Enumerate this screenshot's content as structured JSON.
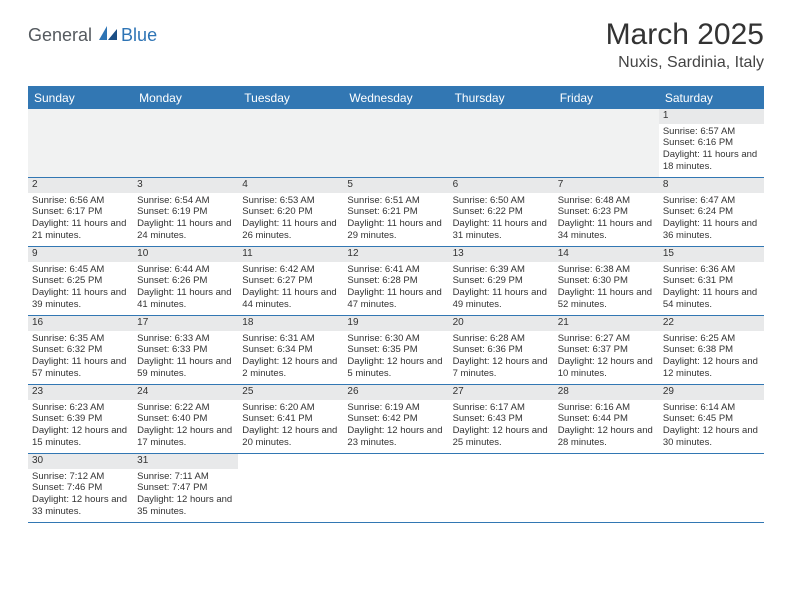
{
  "logo": {
    "text1": "General",
    "text2": "Blue"
  },
  "title": "March 2025",
  "location": "Nuxis, Sardinia, Italy",
  "day_header_bg": "#3277b3",
  "day_header_fg": "#ffffff",
  "grid_border": "#3277b3",
  "blank_bg": "#f1f2f2",
  "daynum_bg": "#e8e9ea",
  "days_of_week": [
    "Sunday",
    "Monday",
    "Tuesday",
    "Wednesday",
    "Thursday",
    "Friday",
    "Saturday"
  ],
  "weeks": [
    [
      {
        "blank": true
      },
      {
        "blank": true
      },
      {
        "blank": true
      },
      {
        "blank": true
      },
      {
        "blank": true
      },
      {
        "blank": true
      },
      {
        "day": "1",
        "sunrise": "Sunrise: 6:57 AM",
        "sunset": "Sunset: 6:16 PM",
        "daylight": "Daylight: 11 hours and 18 minutes."
      }
    ],
    [
      {
        "day": "2",
        "sunrise": "Sunrise: 6:56 AM",
        "sunset": "Sunset: 6:17 PM",
        "daylight": "Daylight: 11 hours and 21 minutes."
      },
      {
        "day": "3",
        "sunrise": "Sunrise: 6:54 AM",
        "sunset": "Sunset: 6:19 PM",
        "daylight": "Daylight: 11 hours and 24 minutes."
      },
      {
        "day": "4",
        "sunrise": "Sunrise: 6:53 AM",
        "sunset": "Sunset: 6:20 PM",
        "daylight": "Daylight: 11 hours and 26 minutes."
      },
      {
        "day": "5",
        "sunrise": "Sunrise: 6:51 AM",
        "sunset": "Sunset: 6:21 PM",
        "daylight": "Daylight: 11 hours and 29 minutes."
      },
      {
        "day": "6",
        "sunrise": "Sunrise: 6:50 AM",
        "sunset": "Sunset: 6:22 PM",
        "daylight": "Daylight: 11 hours and 31 minutes."
      },
      {
        "day": "7",
        "sunrise": "Sunrise: 6:48 AM",
        "sunset": "Sunset: 6:23 PM",
        "daylight": "Daylight: 11 hours and 34 minutes."
      },
      {
        "day": "8",
        "sunrise": "Sunrise: 6:47 AM",
        "sunset": "Sunset: 6:24 PM",
        "daylight": "Daylight: 11 hours and 36 minutes."
      }
    ],
    [
      {
        "day": "9",
        "sunrise": "Sunrise: 6:45 AM",
        "sunset": "Sunset: 6:25 PM",
        "daylight": "Daylight: 11 hours and 39 minutes."
      },
      {
        "day": "10",
        "sunrise": "Sunrise: 6:44 AM",
        "sunset": "Sunset: 6:26 PM",
        "daylight": "Daylight: 11 hours and 41 minutes."
      },
      {
        "day": "11",
        "sunrise": "Sunrise: 6:42 AM",
        "sunset": "Sunset: 6:27 PM",
        "daylight": "Daylight: 11 hours and 44 minutes."
      },
      {
        "day": "12",
        "sunrise": "Sunrise: 6:41 AM",
        "sunset": "Sunset: 6:28 PM",
        "daylight": "Daylight: 11 hours and 47 minutes."
      },
      {
        "day": "13",
        "sunrise": "Sunrise: 6:39 AM",
        "sunset": "Sunset: 6:29 PM",
        "daylight": "Daylight: 11 hours and 49 minutes."
      },
      {
        "day": "14",
        "sunrise": "Sunrise: 6:38 AM",
        "sunset": "Sunset: 6:30 PM",
        "daylight": "Daylight: 11 hours and 52 minutes."
      },
      {
        "day": "15",
        "sunrise": "Sunrise: 6:36 AM",
        "sunset": "Sunset: 6:31 PM",
        "daylight": "Daylight: 11 hours and 54 minutes."
      }
    ],
    [
      {
        "day": "16",
        "sunrise": "Sunrise: 6:35 AM",
        "sunset": "Sunset: 6:32 PM",
        "daylight": "Daylight: 11 hours and 57 minutes."
      },
      {
        "day": "17",
        "sunrise": "Sunrise: 6:33 AM",
        "sunset": "Sunset: 6:33 PM",
        "daylight": "Daylight: 11 hours and 59 minutes."
      },
      {
        "day": "18",
        "sunrise": "Sunrise: 6:31 AM",
        "sunset": "Sunset: 6:34 PM",
        "daylight": "Daylight: 12 hours and 2 minutes."
      },
      {
        "day": "19",
        "sunrise": "Sunrise: 6:30 AM",
        "sunset": "Sunset: 6:35 PM",
        "daylight": "Daylight: 12 hours and 5 minutes."
      },
      {
        "day": "20",
        "sunrise": "Sunrise: 6:28 AM",
        "sunset": "Sunset: 6:36 PM",
        "daylight": "Daylight: 12 hours and 7 minutes."
      },
      {
        "day": "21",
        "sunrise": "Sunrise: 6:27 AM",
        "sunset": "Sunset: 6:37 PM",
        "daylight": "Daylight: 12 hours and 10 minutes."
      },
      {
        "day": "22",
        "sunrise": "Sunrise: 6:25 AM",
        "sunset": "Sunset: 6:38 PM",
        "daylight": "Daylight: 12 hours and 12 minutes."
      }
    ],
    [
      {
        "day": "23",
        "sunrise": "Sunrise: 6:23 AM",
        "sunset": "Sunset: 6:39 PM",
        "daylight": "Daylight: 12 hours and 15 minutes."
      },
      {
        "day": "24",
        "sunrise": "Sunrise: 6:22 AM",
        "sunset": "Sunset: 6:40 PM",
        "daylight": "Daylight: 12 hours and 17 minutes."
      },
      {
        "day": "25",
        "sunrise": "Sunrise: 6:20 AM",
        "sunset": "Sunset: 6:41 PM",
        "daylight": "Daylight: 12 hours and 20 minutes."
      },
      {
        "day": "26",
        "sunrise": "Sunrise: 6:19 AM",
        "sunset": "Sunset: 6:42 PM",
        "daylight": "Daylight: 12 hours and 23 minutes."
      },
      {
        "day": "27",
        "sunrise": "Sunrise: 6:17 AM",
        "sunset": "Sunset: 6:43 PM",
        "daylight": "Daylight: 12 hours and 25 minutes."
      },
      {
        "day": "28",
        "sunrise": "Sunrise: 6:16 AM",
        "sunset": "Sunset: 6:44 PM",
        "daylight": "Daylight: 12 hours and 28 minutes."
      },
      {
        "day": "29",
        "sunrise": "Sunrise: 6:14 AM",
        "sunset": "Sunset: 6:45 PM",
        "daylight": "Daylight: 12 hours and 30 minutes."
      }
    ],
    [
      {
        "day": "30",
        "sunrise": "Sunrise: 7:12 AM",
        "sunset": "Sunset: 7:46 PM",
        "daylight": "Daylight: 12 hours and 33 minutes."
      },
      {
        "day": "31",
        "sunrise": "Sunrise: 7:11 AM",
        "sunset": "Sunset: 7:47 PM",
        "daylight": "Daylight: 12 hours and 35 minutes."
      },
      {
        "blank": true,
        "nobg": true
      },
      {
        "blank": true,
        "nobg": true
      },
      {
        "blank": true,
        "nobg": true
      },
      {
        "blank": true,
        "nobg": true
      },
      {
        "blank": true,
        "nobg": true
      }
    ]
  ]
}
